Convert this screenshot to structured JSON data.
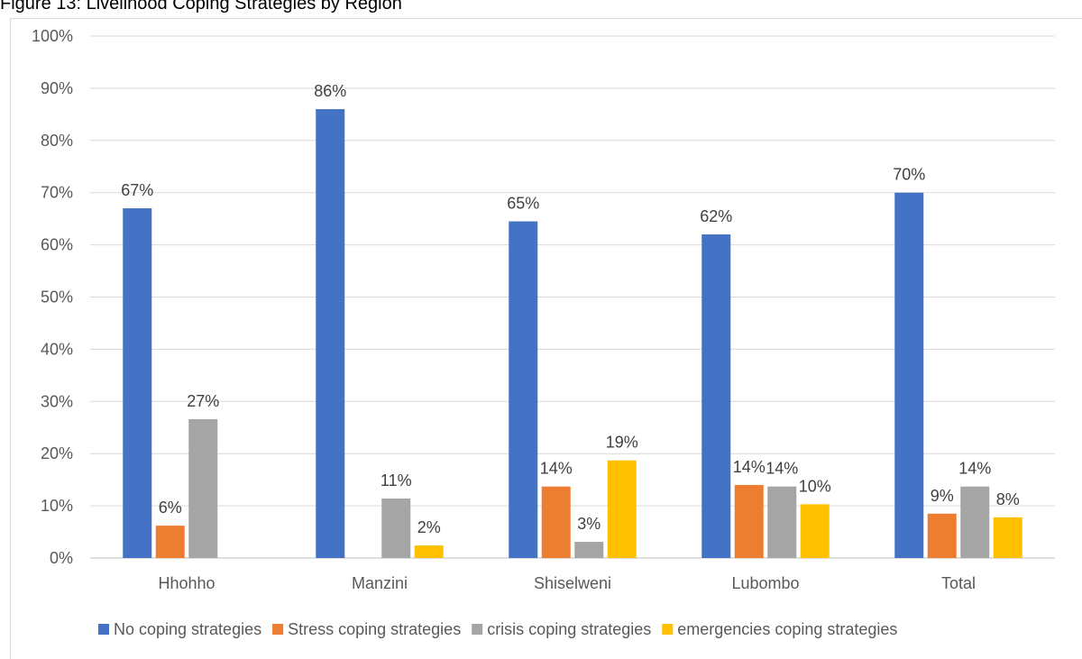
{
  "caption": "Figure 13: Livelihood Coping Strategies by Region",
  "chart_data": {
    "type": "bar",
    "categories": [
      "Hhohho",
      "Manzini",
      "Shiselweni",
      "Lubombo",
      "Total"
    ],
    "series": [
      {
        "name": "No coping strategies",
        "color": "#4472c4",
        "values": [
          67,
          86,
          64.5,
          62,
          70
        ],
        "labels": [
          "67%",
          "86%",
          "65%",
          "62%",
          "70%"
        ]
      },
      {
        "name": "Stress coping strategies",
        "color": "#ed7d31",
        "values": [
          6.2,
          null,
          13.7,
          14,
          8.5
        ],
        "labels": [
          "6%",
          "",
          "14%",
          "14%",
          "9%"
        ]
      },
      {
        "name": "crisis coping strategies",
        "color": "#a5a5a5",
        "values": [
          26.6,
          11.4,
          3.1,
          13.7,
          13.7
        ],
        "labels": [
          "27%",
          "11%",
          "3%",
          "14%",
          "14%"
        ]
      },
      {
        "name": "emergencies coping strategies",
        "color": "#ffc000",
        "values": [
          null,
          2.4,
          18.7,
          10.3,
          7.8
        ],
        "labels": [
          "",
          "2%",
          "19%",
          "10%",
          "8%"
        ]
      }
    ],
    "yticks": [
      "0%",
      "10%",
      "20%",
      "30%",
      "40%",
      "50%",
      "60%",
      "70%",
      "80%",
      "90%",
      "100%"
    ],
    "ylim": [
      0,
      100
    ],
    "grid": true,
    "legend_position": "bottom"
  }
}
